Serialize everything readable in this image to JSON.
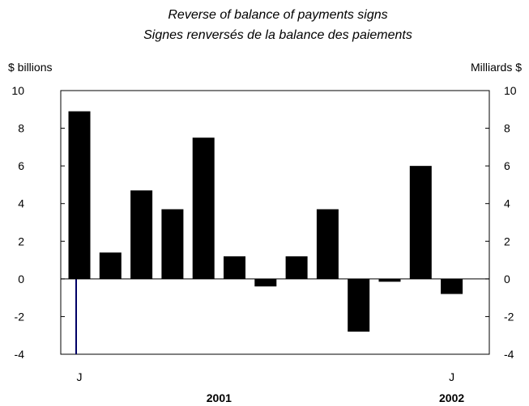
{
  "chart_data": {
    "type": "bar",
    "title": "Reverse of balance of payments signs",
    "subtitle": "Signes renversés de la balance des paiements",
    "ylabel_left": "$ billions",
    "ylabel_right": "Milliards $",
    "ylim": [
      -4,
      10
    ],
    "yticks": [
      -4,
      -2,
      0,
      2,
      4,
      6,
      8,
      10
    ],
    "values": [
      8.9,
      1.4,
      4.7,
      3.7,
      7.5,
      1.2,
      -0.4,
      1.2,
      3.7,
      -2.8,
      -0.15,
      6.0,
      -0.8
    ],
    "x_labels": [
      "J",
      "",
      "",
      "",
      "",
      "",
      "",
      "",
      "",
      "",
      "",
      "",
      "J"
    ],
    "years": [
      {
        "label": "2001",
        "at_index": 4.5
      },
      {
        "label": "2002",
        "at_index": 12
      }
    ],
    "bar_color": "#000000",
    "marker_line_color": "#000066",
    "grid": false
  }
}
